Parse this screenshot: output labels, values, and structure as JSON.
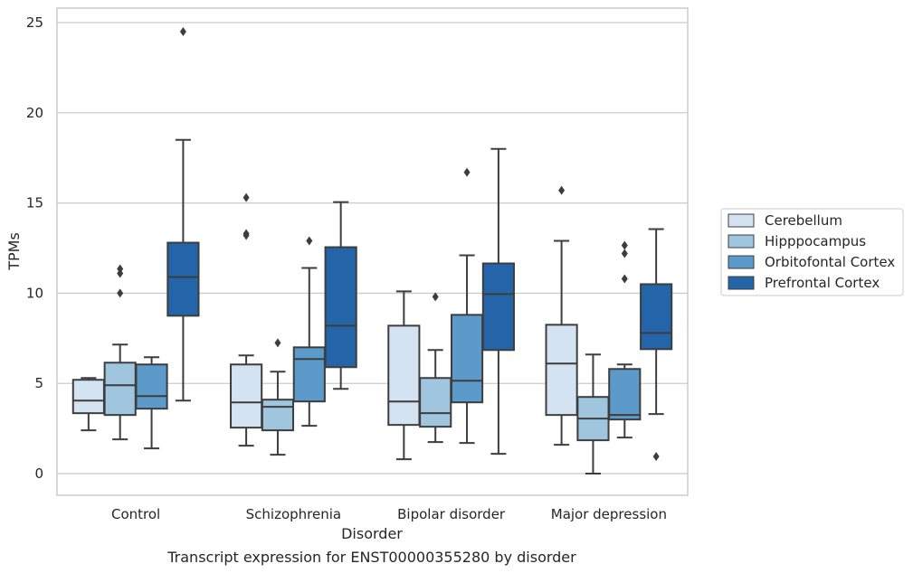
{
  "chart_data": {
    "type": "box",
    "caption": "Transcript expression for ENST00000355280 by disorder",
    "xlabel": "Disorder",
    "ylabel": "TPMs",
    "ylim": [
      -1.2,
      25.8
    ],
    "yticks": [
      0,
      5,
      10,
      15,
      20,
      25
    ],
    "grid": "horizontal",
    "legend_position": "right",
    "categories": [
      "Control",
      "Schizophrenia",
      "Bipolar disorder",
      "Major depression"
    ],
    "series": [
      {
        "name": "Cerebellum",
        "color": "#d4e3f2",
        "boxes": [
          {
            "whisker_low": 2.4,
            "q1": 3.35,
            "median": 4.05,
            "q3": 5.2,
            "whisker_high": 5.3,
            "outliers": []
          },
          {
            "whisker_low": 1.55,
            "q1": 2.55,
            "median": 3.95,
            "q3": 6.05,
            "whisker_high": 6.55,
            "outliers": [
              13.3,
              13.2,
              15.3
            ]
          },
          {
            "whisker_low": 0.8,
            "q1": 2.7,
            "median": 4.0,
            "q3": 8.2,
            "whisker_high": 10.1,
            "outliers": []
          },
          {
            "whisker_low": 1.6,
            "q1": 3.25,
            "median": 6.1,
            "q3": 8.25,
            "whisker_high": 12.9,
            "outliers": [
              15.7
            ]
          }
        ]
      },
      {
        "name": "Hipppocampus",
        "color": "#9fc5df",
        "boxes": [
          {
            "whisker_low": 1.9,
            "q1": 3.25,
            "median": 4.9,
            "q3": 6.15,
            "whisker_high": 7.15,
            "outliers": [
              10.0,
              11.1,
              11.35
            ]
          },
          {
            "whisker_low": 1.05,
            "q1": 2.4,
            "median": 3.7,
            "q3": 4.1,
            "whisker_high": 5.65,
            "outliers": [
              7.25
            ]
          },
          {
            "whisker_low": 1.75,
            "q1": 2.6,
            "median": 3.35,
            "q3": 5.3,
            "whisker_high": 6.85,
            "outliers": [
              9.8
            ]
          },
          {
            "whisker_low": 0.0,
            "q1": 1.85,
            "median": 3.05,
            "q3": 4.25,
            "whisker_high": 6.6,
            "outliers": []
          }
        ]
      },
      {
        "name": "Orbitofontal Cortex",
        "color": "#5b9ac9",
        "boxes": [
          {
            "whisker_low": 1.4,
            "q1": 3.6,
            "median": 4.3,
            "q3": 6.05,
            "whisker_high": 6.45,
            "outliers": []
          },
          {
            "whisker_low": 2.65,
            "q1": 4.0,
            "median": 6.35,
            "q3": 7.0,
            "whisker_high": 11.4,
            "outliers": [
              12.9
            ]
          },
          {
            "whisker_low": 1.7,
            "q1": 3.95,
            "median": 5.15,
            "q3": 8.8,
            "whisker_high": 12.1,
            "outliers": [
              16.7
            ]
          },
          {
            "whisker_low": 2.0,
            "q1": 3.0,
            "median": 3.25,
            "q3": 5.8,
            "whisker_high": 6.05,
            "outliers": [
              10.8,
              12.2,
              12.65
            ]
          }
        ]
      },
      {
        "name": "Prefrontal Cortex",
        "color": "#2464a8",
        "boxes": [
          {
            "whisker_low": 4.05,
            "q1": 8.75,
            "median": 10.9,
            "q3": 12.8,
            "whisker_high": 18.5,
            "outliers": [
              24.5
            ]
          },
          {
            "whisker_low": 4.7,
            "q1": 5.9,
            "median": 8.2,
            "q3": 12.55,
            "whisker_high": 15.05,
            "outliers": []
          },
          {
            "whisker_low": 1.1,
            "q1": 6.85,
            "median": 9.95,
            "q3": 11.65,
            "whisker_high": 18.0,
            "outliers": []
          },
          {
            "whisker_low": 3.3,
            "q1": 6.9,
            "median": 7.8,
            "q3": 10.5,
            "whisker_high": 13.55,
            "outliers": [
              0.95
            ]
          }
        ]
      }
    ]
  }
}
